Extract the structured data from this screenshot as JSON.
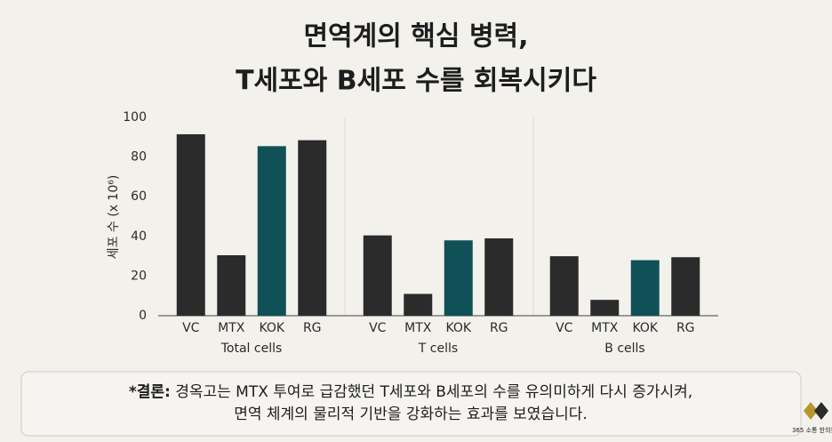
{
  "header": {
    "title_lines": [
      "면역계의 핵심 병력,",
      "T세포와 B세포 수를 회복시키다"
    ]
  },
  "chart_data": {
    "type": "bar",
    "ylabel": "세포 수 (x 10⁶)",
    "ylim": [
      0,
      100
    ],
    "yticks": [
      0,
      20,
      40,
      60,
      80,
      100
    ],
    "grid": false,
    "colors": [
      "#2b2b2b",
      "#2b2b2b",
      "#0f5156",
      "#2b2b2b"
    ],
    "groups": [
      {
        "name": "Total cells",
        "categories": [
          "VC",
          "MTX",
          "KOK",
          "RG"
        ],
        "values": [
          91.5,
          30.5,
          85.5,
          88.5
        ]
      },
      {
        "name": "T cells",
        "categories": [
          "VC",
          "MTX",
          "KOK",
          "RG"
        ],
        "values": [
          40.5,
          11,
          38,
          39
        ]
      },
      {
        "name": "B cells",
        "categories": [
          "VC",
          "MTX",
          "KOK",
          "RG"
        ],
        "values": [
          30,
          8,
          28,
          29.5
        ]
      }
    ]
  },
  "conclusion": {
    "label": "*결론:",
    "lines": [
      "경옥고는 MTX 투여로 급감했던 T세포와 B세포의 수를 유의미하게 다시 증가시켜,",
      "면역 체계의 물리적 기반을 강화하는 효과를 보였습니다."
    ]
  },
  "logo": "365 소통 한의원"
}
